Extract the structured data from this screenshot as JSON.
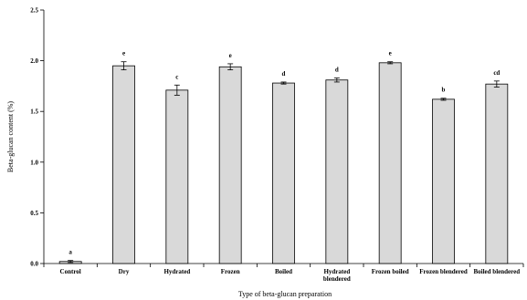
{
  "chart_data": {
    "type": "bar",
    "title": "",
    "xlabel": "Type of beta-glucan preparation",
    "ylabel": "Beta-glucan content (%)",
    "ylim": [
      0,
      2.5
    ],
    "yticks": [
      "0.0",
      "0.5",
      "1.0",
      "1.5",
      "2.0",
      "2.5"
    ],
    "categories": [
      [
        "Control"
      ],
      [
        "Dry"
      ],
      [
        "Hydrated"
      ],
      [
        "Frozen"
      ],
      [
        "Boiled"
      ],
      [
        "Hydrated",
        "blendered"
      ],
      [
        "Frozen boiled"
      ],
      [
        "Frozen blendered"
      ],
      [
        "Boiled blendered"
      ]
    ],
    "values": [
      0.02,
      1.95,
      1.71,
      1.94,
      1.78,
      1.81,
      1.98,
      1.62,
      1.77
    ],
    "errors": [
      0.01,
      0.04,
      0.05,
      0.03,
      0.01,
      0.02,
      0.01,
      0.01,
      0.03
    ],
    "significance_labels": [
      "a",
      "e",
      "c",
      "e",
      "d",
      "d",
      "e",
      "b",
      "cd"
    ],
    "bar_color": "#d9d9d9",
    "bar_edge_color": "#000000",
    "grid": false,
    "legend": "none"
  }
}
